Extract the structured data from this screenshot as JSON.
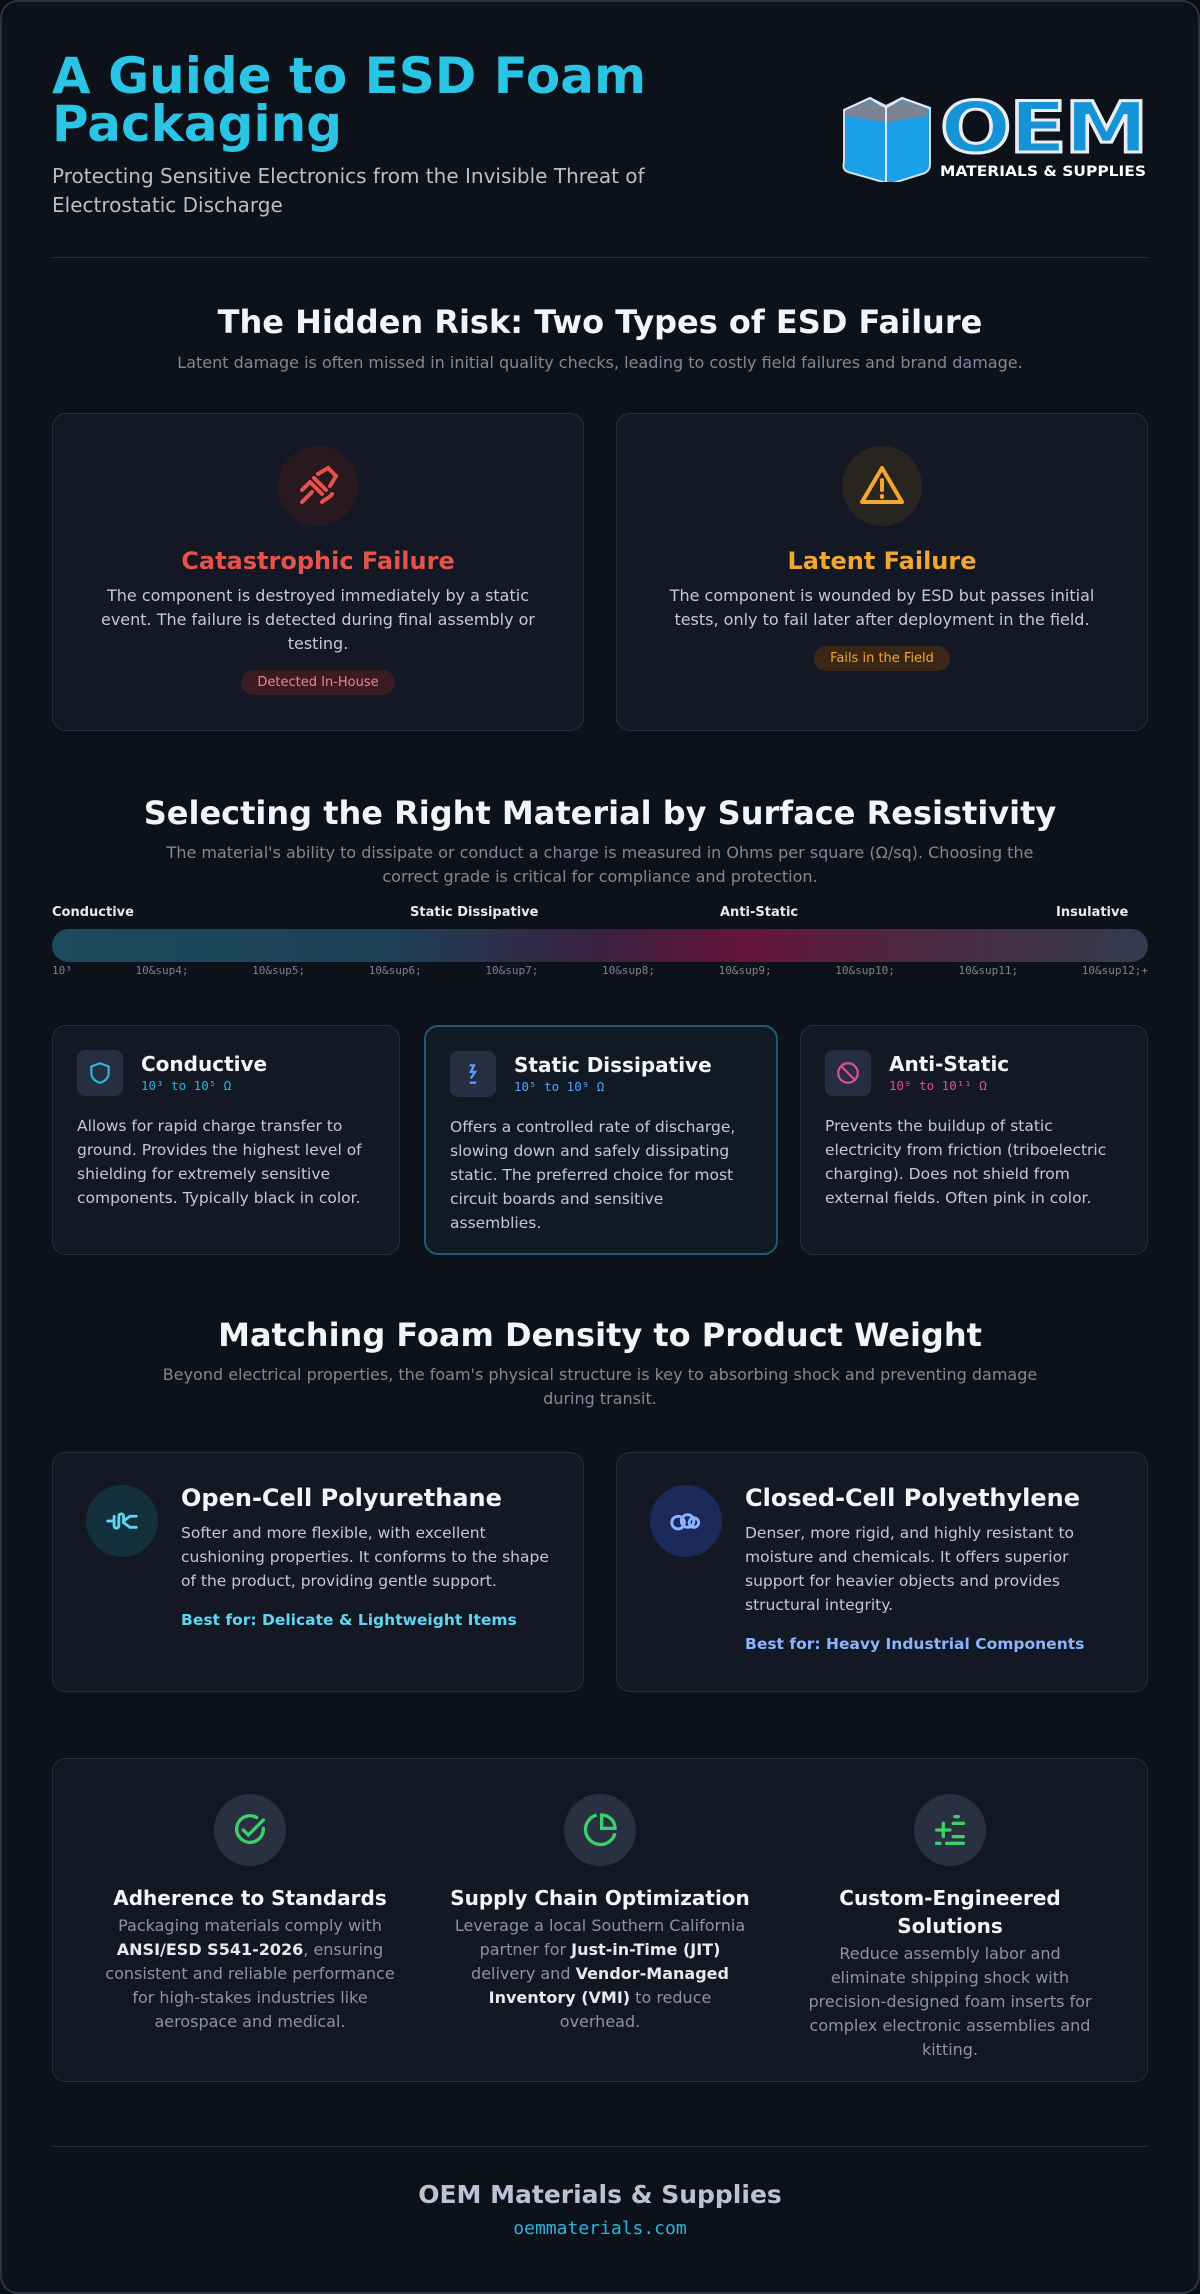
{
  "header": {
    "title": "A Guide to ESD Foam Packaging",
    "subtitle": "Protecting Sensitive Electronics from the Invisible Threat of Electrostatic Discharge",
    "logo": {
      "name": "OEM",
      "tagline": "MATERIALS & SUPPLIES"
    }
  },
  "failures": {
    "title": "The Hidden Risk: Two Types of ESD Failure",
    "subtitle": "Latent damage is often missed in initial quality checks, leading to costly field failures and brand damage.",
    "cards": [
      {
        "title": "Catastrophic Failure",
        "description": "The component is destroyed immediately by a static event. The failure is detected during final assembly or testing.",
        "badge": "Detected In-House"
      },
      {
        "title": "Latent Failure",
        "description": "The component is wounded by ESD but passes initial tests, only to fail later after deployment in the field.",
        "badge": "Fails in the Field"
      }
    ]
  },
  "resistivity": {
    "title": "Selecting the Right Material by Surface Resistivity",
    "subtitle": "The material's ability to dissipate or conduct a charge is measured in Ohms per square (Ω/sq). Choosing the correct grade is critical for compliance and protection.",
    "scale_labels": [
      "Conductive",
      "Static Dissipative",
      "Anti-Static",
      "Insulative"
    ],
    "scale_ticks": [
      "10³",
      "10&sup4;",
      "10&sup5;",
      "10&sup6;",
      "10&sup7;",
      "10&sup8;",
      "10&sup9;",
      "10&sup10;",
      "10&sup11;",
      "10&sup12;+"
    ],
    "cards": [
      {
        "title": "Conductive",
        "range": "10³ to 10⁵ Ω",
        "description": "Allows for rapid charge transfer to ground. Provides the highest level of shielding for extremely sensitive components. Typically black in color."
      },
      {
        "title": "Static Dissipative",
        "range": "10⁵ to 10⁹ Ω",
        "description": "Offers a controlled rate of discharge, slowing down and safely dissipating static. The preferred choice for most circuit boards and sensitive assemblies."
      },
      {
        "title": "Anti-Static",
        "range": "10⁹ to 10¹¹ Ω",
        "description": "Prevents the buildup of static electricity from friction (triboelectric charging). Does not shield from external fields. Often pink in color."
      }
    ]
  },
  "density": {
    "title": "Matching Foam Density to Product Weight",
    "subtitle": "Beyond electrical properties, the foam's physical structure is key to absorbing shock and preventing damage during transit.",
    "cards": [
      {
        "title": "Open-Cell Polyurethane",
        "description": "Softer and more flexible, with excellent cushioning properties. It conforms to the shape of the product, providing gentle support.",
        "best_for": "Best for: Delicate & Lightweight Items"
      },
      {
        "title": "Closed-Cell Polyethylene",
        "description": "Denser, more rigid, and highly resistant to moisture and chemicals. It offers superior support for heavier objects and provides structural integrity.",
        "best_for": "Best for: Heavy Industrial Components"
      }
    ]
  },
  "features": [
    {
      "title": "Adherence to Standards",
      "description": [
        "Packaging materials comply with ",
        {
          "text": "ANSI/ESD S541-2026",
          "bold": true
        },
        ", ensuring consistent and reliable performance for high-stakes industries like aerospace and medical."
      ]
    },
    {
      "title": "Supply Chain Optimization",
      "description": [
        "Leverage a local Southern California partner for ",
        {
          "text": "Just-in-Time (JIT)",
          "bold": true
        },
        " delivery and ",
        {
          "text": "Vendor-Managed Inventory (VMI)",
          "bold": true
        },
        " to reduce overhead."
      ]
    },
    {
      "title": "Custom-Engineered Solutions",
      "description": [
        "Reduce assembly labor and eliminate shipping shock with precision-designed foam inserts for complex electronic assemblies and kitting."
      ]
    }
  ],
  "footer": {
    "name": "OEM Materials & Supplies",
    "url": "oemmaterials.com"
  }
}
